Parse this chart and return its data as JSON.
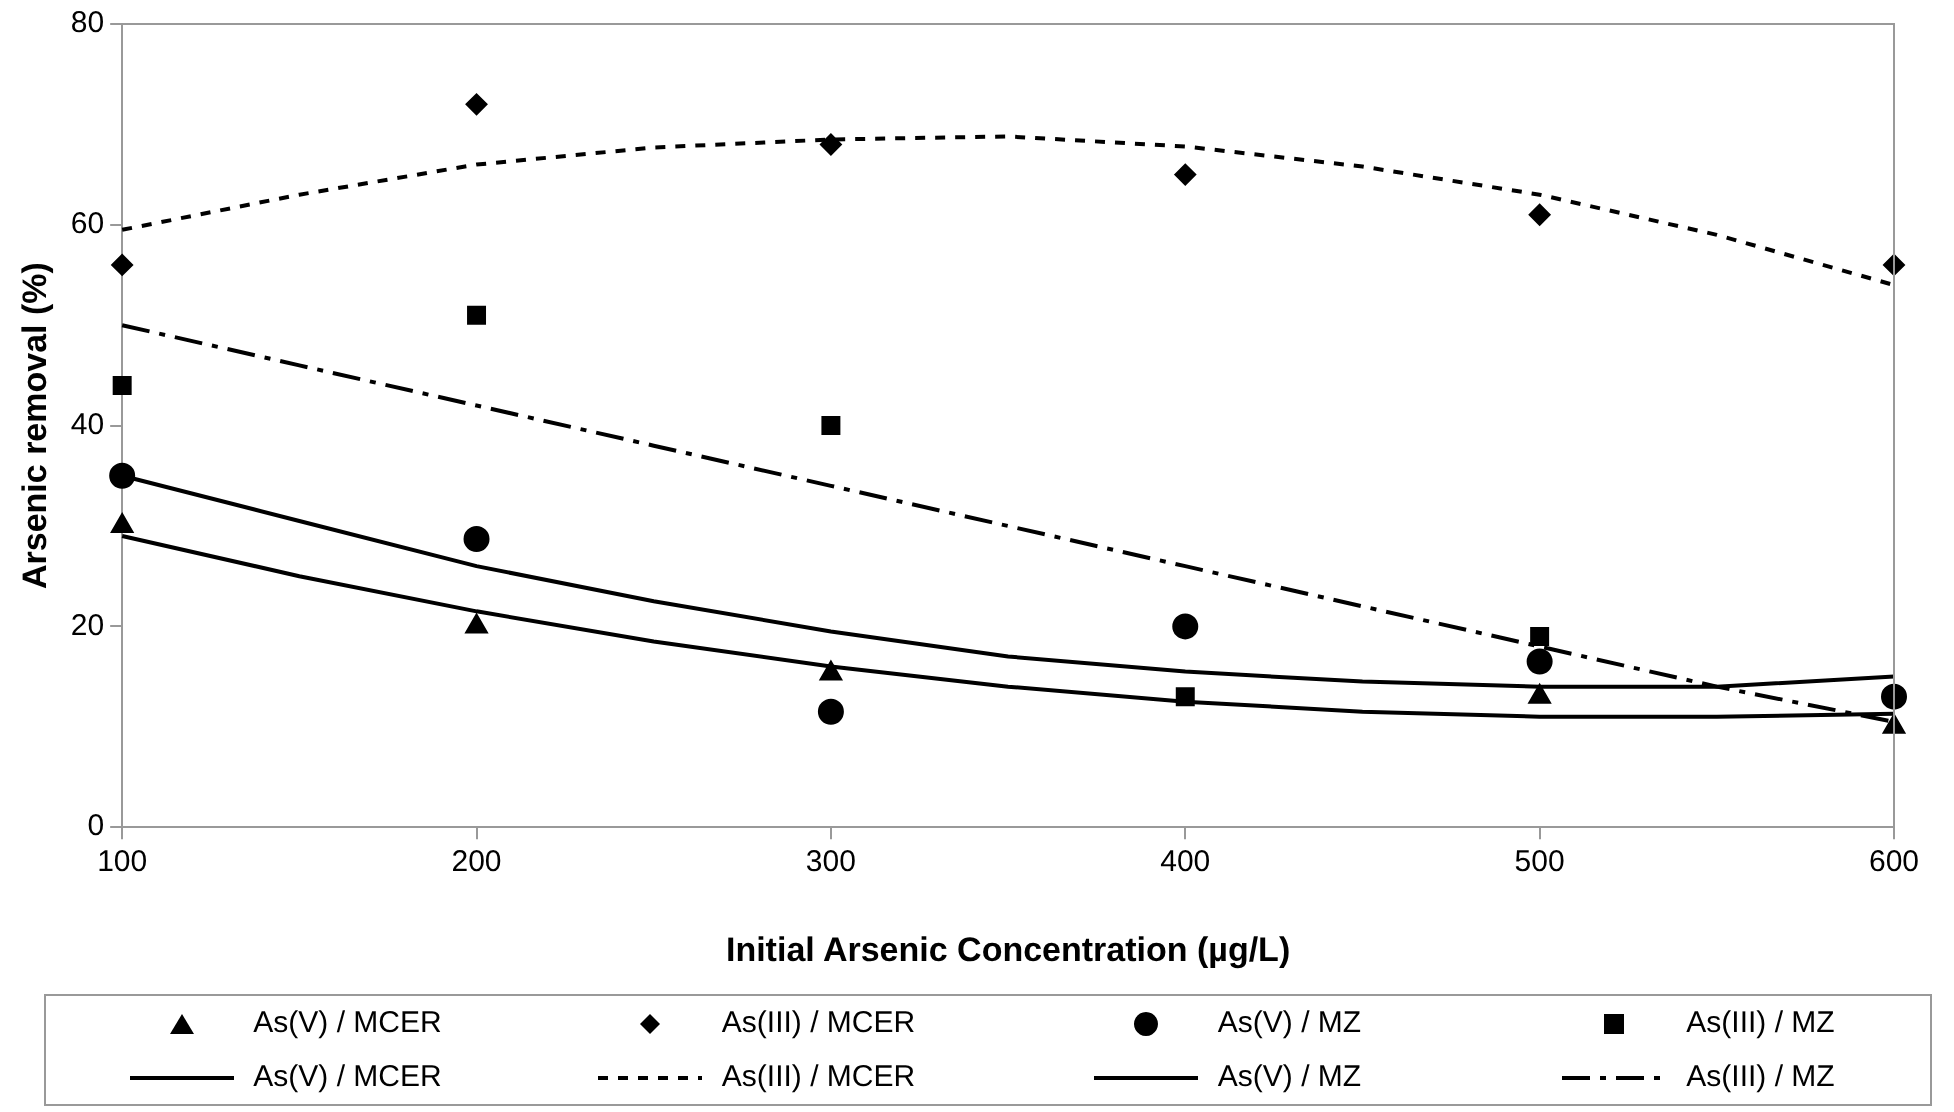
{
  "chart_data": {
    "type": "scatter",
    "xlabel": "Initial Arsenic Concentration (µg/L)",
    "ylabel": "Arsenic removal (%)",
    "x": [
      100,
      200,
      300,
      400,
      500,
      600
    ],
    "series": [
      {
        "name": "As(V) / MCER",
        "color": "#000000",
        "marker": "triangle",
        "values": [
          30,
          20,
          15.3,
          null,
          13,
          10
        ]
      },
      {
        "name": "As(III) / MCER",
        "color": "#000000",
        "marker": "diamond",
        "values": [
          56,
          72,
          68,
          65,
          61,
          56
        ]
      },
      {
        "name": "As(V) / MZ",
        "color": "#000000",
        "marker": "circle",
        "values": [
          35,
          28.7,
          11.5,
          20,
          16.5,
          13
        ]
      },
      {
        "name": "As(III) / MZ",
        "color": "#000000",
        "marker": "square",
        "values": [
          44,
          51,
          40,
          13,
          19,
          null
        ]
      },
      {
        "name": "As(V) / MCER",
        "type": "line",
        "color": "#000000",
        "line_style": "solid",
        "marker": "none",
        "x": [
          100,
          150,
          200,
          250,
          300,
          350,
          400,
          450,
          500,
          550,
          600
        ],
        "values": [
          29,
          25,
          21.5,
          18.5,
          16,
          14,
          12.5,
          11.5,
          11,
          11,
          11.3
        ]
      },
      {
        "name": "As(III) / MCER",
        "type": "line",
        "color": "#000000",
        "line_style": "dotted",
        "marker": "none",
        "x": [
          100,
          150,
          200,
          250,
          300,
          350,
          400,
          450,
          500,
          550,
          600
        ],
        "values": [
          59.5,
          63,
          66,
          67.7,
          68.5,
          68.8,
          67.8,
          65.8,
          63,
          59,
          54
        ]
      },
      {
        "name": "As(V) / MZ",
        "type": "line",
        "color": "#000000",
        "line_style": "solid",
        "marker": "none",
        "x": [
          100,
          150,
          200,
          250,
          300,
          350,
          400,
          450,
          500,
          550,
          600
        ],
        "values": [
          35,
          30.5,
          26,
          22.5,
          19.5,
          17,
          15.5,
          14.5,
          14,
          14,
          15
        ]
      },
      {
        "name": "As(III) / MZ",
        "type": "line",
        "color": "#000000",
        "line_style": "dashed",
        "marker": "none",
        "x": [
          100,
          150,
          200,
          250,
          300,
          350,
          400,
          450,
          500,
          550,
          600
        ],
        "values": [
          50,
          46,
          42,
          38,
          34,
          30,
          26,
          22,
          18,
          14,
          10.5
        ]
      }
    ],
    "xlim": [
      100,
      600
    ],
    "xticks": [
      100,
      200,
      300,
      400,
      500,
      600
    ],
    "ylim": [
      0,
      80
    ],
    "yticks": [
      0,
      20,
      40,
      60,
      80
    ],
    "grid": false,
    "legend": "bottom"
  }
}
